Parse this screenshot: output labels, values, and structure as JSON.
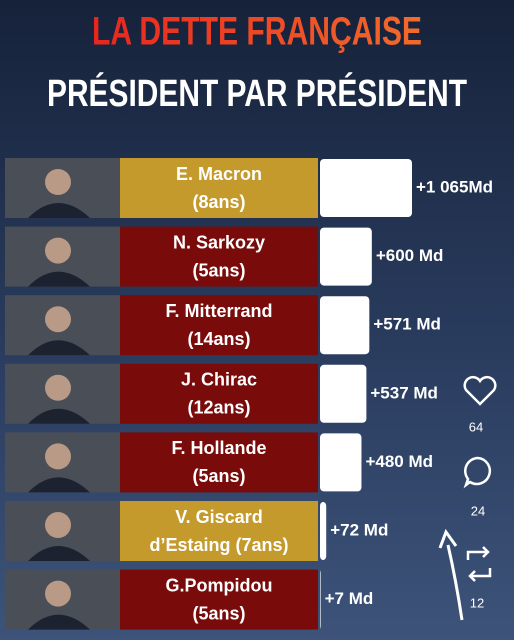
{
  "chart_data": {
    "type": "bar",
    "title": "LA DETTE FRANÇAISE",
    "subtitle": "PRÉSIDENT PAR PRÉSIDENT",
    "categories": [
      [
        "E. Macron",
        "(8ans)"
      ],
      [
        "N. Sarkozy",
        "(5ans)"
      ],
      [
        "F. Mitterrand",
        "(14ans)"
      ],
      [
        "J. Chirac",
        "(12ans)"
      ],
      [
        "F. Hollande",
        "(5ans)"
      ],
      [
        "V. Giscard",
        "d’Estaing (7ans)"
      ],
      [
        "G.Pompidou",
        "(5ans)"
      ]
    ],
    "values": [
      1065,
      600,
      571,
      537,
      480,
      72,
      7
    ],
    "value_labels": [
      "+1 065Md",
      "+600 Md",
      "+571 Md",
      "+537 Md",
      "+480 Md",
      "+72 Md",
      "+7 Md"
    ],
    "color": "#ffffff",
    "category_colors": [
      "#c49a2c",
      "#7a0b0b",
      "#7a0b0b",
      "#7a0b0b",
      "#7a0b0b",
      "#c49a2c",
      "#7a0b0b"
    ]
  },
  "overlay": {
    "likes": 64,
    "comments": 24,
    "shares": 12
  }
}
